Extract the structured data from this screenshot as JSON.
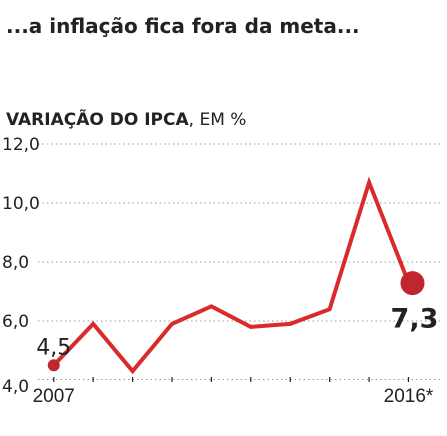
{
  "headline": "...a inflação fica fora da meta...",
  "subtitle": {
    "bold": "VARIAÇÃO DO IPCA",
    "rest": ", EM %"
  },
  "colors": {
    "line": "#d92b2b",
    "dot": "#c0272d",
    "text": "#222222",
    "grid": "#999999"
  },
  "chart_data": {
    "type": "line",
    "title": "VARIAÇÃO DO IPCA, EM %",
    "ylim": [
      4.0,
      12.0
    ],
    "yticks": [
      4.0,
      6.0,
      8.0,
      10.0,
      12.0
    ],
    "ytick_labels": [
      "4,0",
      "6,0",
      "8,0",
      "10,0",
      "12,0"
    ],
    "x": [
      2007,
      2008,
      2009,
      2010,
      2011,
      2012,
      2013,
      2014,
      2015,
      2016
    ],
    "xlim": [
      2006.6,
      2016.8
    ],
    "xtick_labels": [
      {
        "x": 2007,
        "label": "2007"
      },
      {
        "x": 2016,
        "label": "2016*"
      }
    ],
    "series": [
      {
        "values": [
          4.5,
          5.9,
          4.3,
          5.9,
          6.5,
          5.8,
          5.9,
          6.4,
          10.7,
          7.3
        ]
      }
    ],
    "annotations": [
      {
        "x": 2007,
        "y": 4.5,
        "label": "4,5",
        "style": "small"
      },
      {
        "x": 2016,
        "y": 7.3,
        "label": "7,3",
        "style": "big"
      }
    ],
    "grid": true
  }
}
